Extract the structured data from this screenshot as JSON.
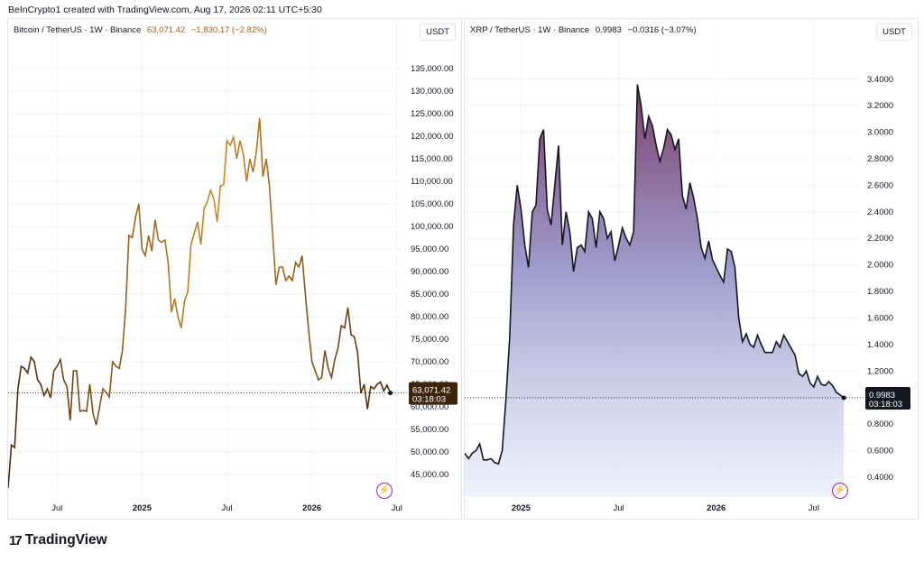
{
  "header": {
    "text": "BeInCrypto1 created with TradingView.com, Aug 17, 2026 02:11 UTC+5:30"
  },
  "logo": {
    "mark": "17",
    "label": "TradingView"
  },
  "chart_data": [
    {
      "type": "line",
      "symbol": "Bitcoin / TetherUS · 1W · Binance",
      "last": "63,071.42",
      "change": "−1,830.17 (−2.82%)",
      "unit": "USDT",
      "price_tag": "63,071.42",
      "countdown": "03:18:03",
      "ylim": [
        40000,
        140000
      ],
      "yticks": [
        "135,000.00",
        "130,000.00",
        "125,000.00",
        "120,000.00",
        "115,000.00",
        "110,000.00",
        "105,000.00",
        "100,000.00",
        "95,000.00",
        "90,000.00",
        "85,000.00",
        "80,000.00",
        "75,000.00",
        "70,000.00",
        "65,000.00",
        "60,000.00",
        "55,000.00",
        "50,000.00",
        "45,000.00"
      ],
      "ytick_values": [
        135000,
        130000,
        125000,
        120000,
        115000,
        110000,
        105000,
        100000,
        95000,
        90000,
        85000,
        80000,
        75000,
        70000,
        65000,
        60000,
        55000,
        50000,
        45000
      ],
      "xticks": [
        {
          "label": "Jul",
          "week": 0
        },
        {
          "label": "2025",
          "week": 0
        },
        {
          "label": "Jul",
          "week": 0
        },
        {
          "label": "2026",
          "week": 0
        },
        {
          "label": "Jul",
          "week": 0
        }
      ],
      "xtick_index": [
        15,
        41,
        67,
        93,
        119
      ],
      "colors": {
        "line_start": "#4a2a0b",
        "line_peak": "#cf8a25",
        "line_end": "#4a2a0b"
      },
      "values": [
        42000,
        51500,
        51000,
        64000,
        69000,
        68500,
        67500,
        71000,
        70000,
        66000,
        65000,
        62500,
        64000,
        62000,
        68000,
        69000,
        70500,
        66000,
        64500,
        57000,
        68000,
        68000,
        59000,
        59200,
        59000,
        65000,
        58500,
        56000,
        60000,
        64000,
        63200,
        62200,
        70000,
        69000,
        68500,
        72500,
        82000,
        98000,
        97500,
        102000,
        105000,
        95000,
        93500,
        98000,
        94500,
        101500,
        97000,
        96500,
        97000,
        92000,
        81000,
        84000,
        80000,
        77500,
        83500,
        85500,
        96000,
        98500,
        101000,
        96000,
        104000,
        105500,
        108000,
        106000,
        101000,
        109000,
        109200,
        119000,
        118000,
        119800,
        115000,
        119000,
        116000,
        110000,
        115000,
        112000,
        116500,
        124000,
        111000,
        115000,
        109000,
        98000,
        87000,
        91000,
        91000,
        88000,
        89000,
        88000,
        92000,
        91000,
        93500,
        85000,
        77000,
        70000,
        68000,
        66000,
        66500,
        72500,
        68500,
        66500,
        70500,
        73000,
        78000,
        77500,
        82000,
        76000,
        75500,
        72000,
        63000,
        65000,
        59500,
        64500,
        64000,
        65000,
        65500,
        63500,
        64800,
        63071
      ],
      "last_value": 63071
    },
    {
      "type": "area",
      "symbol": "XRP / TetherUS · 1W · Binance",
      "last": "0.9983",
      "change": "−0.0316 (−3.07%)",
      "unit": "USDT",
      "price_tag": "0.9983",
      "countdown": "03:18:03",
      "ylim": [
        0.25,
        3.65
      ],
      "yticks": [
        "3.4000",
        "3.2000",
        "3.0000",
        "2.8000",
        "2.6000",
        "2.4000",
        "2.2000",
        "2.0000",
        "1.8000",
        "1.6000",
        "1.4000",
        "1.2000",
        "1.0000",
        "0.8000",
        "0.6000",
        "0.4000"
      ],
      "ytick_values": [
        3.4,
        3.2,
        3.0,
        2.8,
        2.6,
        2.4,
        2.2,
        2.0,
        1.8,
        1.6,
        1.4,
        1.2,
        1.0,
        0.8,
        0.6,
        0.4
      ],
      "xticks": [
        {
          "label": "2025"
        },
        {
          "label": "Jul"
        },
        {
          "label": "2026"
        },
        {
          "label": "Jul"
        }
      ],
      "xtick_index": [
        15,
        41,
        67,
        93
      ],
      "colors": {
        "line": "#131722",
        "fill_top": "#7b3b66",
        "fill_mid": "#8f8bc4",
        "fill_bottom": "#e6e9fb"
      },
      "values": [
        0.58,
        0.54,
        0.58,
        0.6,
        0.65,
        0.53,
        0.53,
        0.54,
        0.51,
        0.5,
        0.6,
        1.0,
        1.46,
        2.3,
        2.6,
        2.42,
        2.15,
        1.98,
        2.4,
        2.45,
        2.95,
        3.02,
        2.42,
        2.3,
        2.6,
        2.9,
        2.15,
        2.4,
        2.25,
        1.95,
        2.13,
        2.15,
        2.1,
        2.4,
        2.35,
        2.13,
        2.4,
        2.35,
        2.2,
        2.25,
        2.03,
        2.15,
        2.28,
        2.2,
        2.15,
        2.25,
        3.36,
        3.2,
        2.95,
        3.12,
        3.05,
        2.9,
        2.78,
        2.88,
        3.02,
        2.98,
        2.87,
        2.95,
        2.52,
        2.42,
        2.62,
        2.5,
        2.35,
        2.13,
        2.05,
        2.18,
        2.04,
        1.98,
        1.92,
        1.87,
        2.12,
        2.1,
        1.98,
        1.6,
        1.42,
        1.48,
        1.4,
        1.38,
        1.47,
        1.4,
        1.34,
        1.34,
        1.34,
        1.42,
        1.38,
        1.47,
        1.42,
        1.37,
        1.32,
        1.18,
        1.16,
        1.2,
        1.11,
        1.08,
        1.16,
        1.1,
        1.09,
        1.12,
        1.09,
        1.04,
        1.02,
        0.998
      ],
      "last_value": 0.9983
    }
  ]
}
